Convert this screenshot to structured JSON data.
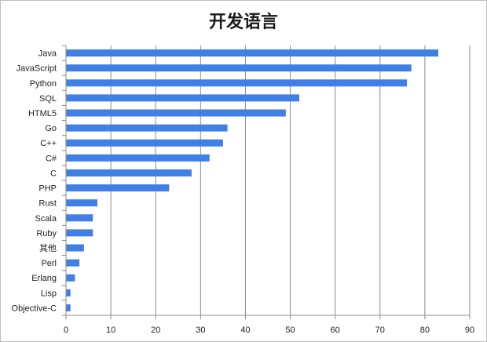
{
  "chart_data": {
    "type": "bar",
    "orientation": "horizontal",
    "title": "开发语言",
    "categories": [
      "Java",
      "JavaScript",
      "Python",
      "SQL",
      "HTML5",
      "Go",
      "C++",
      "C#",
      "C",
      "PHP",
      "Rust",
      "Scala",
      "Ruby",
      "其他",
      "Perl",
      "Erlang",
      "Lisp",
      "Objective-C"
    ],
    "values": [
      83,
      77,
      76,
      52,
      49,
      36,
      35,
      32,
      28,
      23,
      7,
      6,
      6,
      4,
      3,
      2,
      1,
      1
    ],
    "xlim": [
      0,
      90
    ],
    "xticks": [
      0,
      10,
      20,
      30,
      40,
      50,
      60,
      70,
      80,
      90
    ],
    "grid": "vertical",
    "bar_color": "#3f7fe6",
    "legend": "none"
  }
}
